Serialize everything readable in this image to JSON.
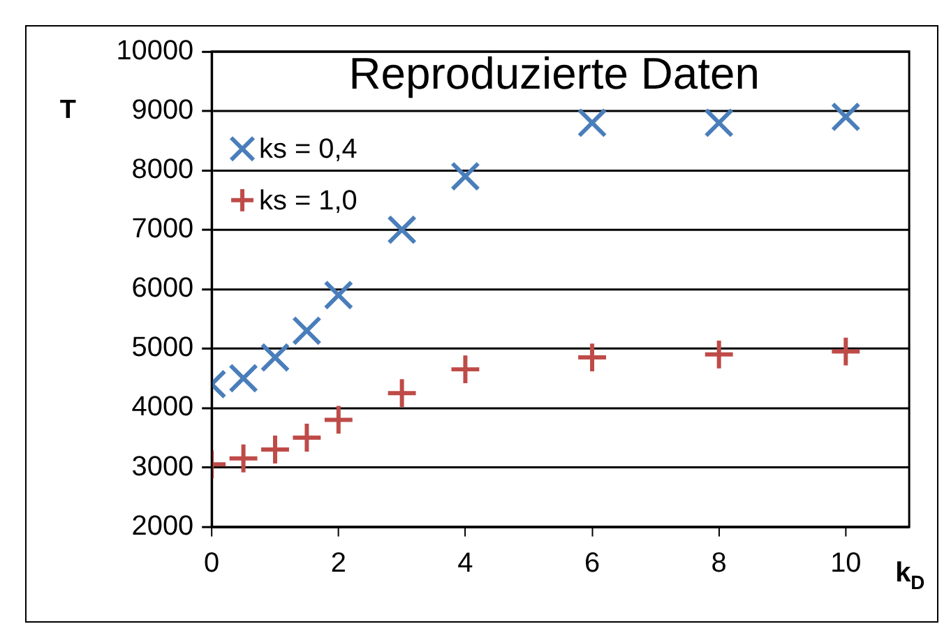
{
  "chart_data": {
    "type": "scatter",
    "title": "Reproduzierte Daten",
    "xlabel": "k$_{D}$",
    "ylabel": "T",
    "x": [
      0,
      0.5,
      1,
      1.5,
      2,
      3,
      4,
      6,
      8,
      10
    ],
    "series": [
      {
        "name": "ks = 0,4",
        "color": "#4a7ebb",
        "marker": "cross",
        "values": [
          4400,
          4500,
          4850,
          5300,
          5900,
          7000,
          7900,
          8800,
          8800,
          8900
        ]
      },
      {
        "name": "ks = 1,0",
        "color": "#be4b48",
        "marker": "plus",
        "values": [
          3050,
          3150,
          3300,
          3500,
          3800,
          4250,
          4650,
          4850,
          4900,
          4950
        ]
      }
    ],
    "xlim": [
      0,
      11
    ],
    "xticks": [
      0,
      2,
      4,
      6,
      8,
      10
    ],
    "ylim": [
      2000,
      10000
    ],
    "yticks": [
      2000,
      3000,
      4000,
      5000,
      6000,
      7000,
      8000,
      9000,
      10000
    ],
    "grid": "y",
    "legend": "top left"
  }
}
